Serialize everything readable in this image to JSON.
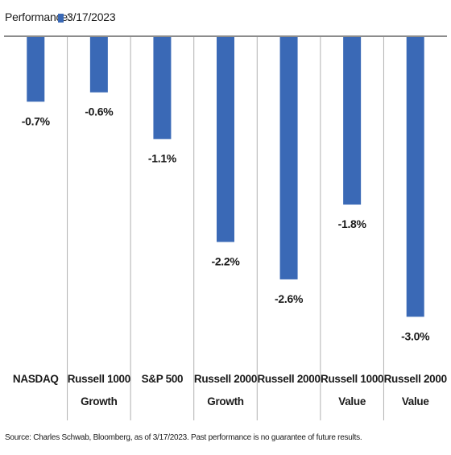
{
  "legend": {
    "label": "Performance:",
    "series_name": "3/17/2023"
  },
  "source": "Source: Charles Schwab, Bloomberg, as of 3/17/2023. Past performance is no guarantee of future results.",
  "colors": {
    "bar": "#3a69b6",
    "axis": "#8c8c8c",
    "divider": "#b0b0b0"
  },
  "chart_data": {
    "type": "bar",
    "title": "",
    "xlabel": "",
    "ylabel": "",
    "ylim": [
      -3.35,
      0
    ],
    "grid": false,
    "legend_position": "top-left",
    "categories": [
      [
        "NASDAQ"
      ],
      [
        "Russell 1000",
        "Growth"
      ],
      [
        "S&P 500"
      ],
      [
        "Russell 2000",
        "Growth"
      ],
      [
        "Russell 2000"
      ],
      [
        "Russell 1000",
        "Value"
      ],
      [
        "Russell 2000",
        "Value"
      ]
    ],
    "series": [
      {
        "name": "3/17/2023",
        "values": [
          -0.7,
          -0.6,
          -1.1,
          -2.2,
          -2.6,
          -1.8,
          -3.0
        ],
        "labels": [
          "-0.7%",
          "-0.6%",
          "-1.1%",
          "-2.2%",
          "-2.6%",
          "-1.8%",
          "-3.0%"
        ]
      }
    ]
  }
}
